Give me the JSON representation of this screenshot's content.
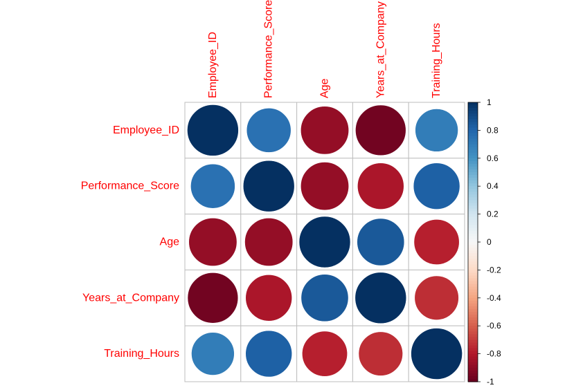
{
  "chart_data": {
    "type": "heatmap",
    "method": "circle",
    "variables": [
      "Employee_ID",
      "Performance_Score",
      "Age",
      "Years_at_Company",
      "Training_Hours"
    ],
    "matrix": [
      [
        1.0,
        0.75,
        -0.88,
        -0.97,
        0.7
      ],
      [
        0.75,
        1.0,
        -0.88,
        -0.82,
        0.82
      ],
      [
        -0.88,
        -0.88,
        1.0,
        0.85,
        -0.78
      ],
      [
        -0.97,
        -0.82,
        0.85,
        1.0,
        -0.74
      ],
      [
        0.7,
        0.82,
        -0.78,
        -0.74,
        1.0
      ]
    ],
    "colorbar": {
      "range": [
        -1,
        1
      ],
      "tick_labels": [
        "1",
        "0.8",
        "0.6",
        "0.4",
        "0.2",
        "0",
        "-0.2",
        "-0.4",
        "-0.6",
        "-0.8",
        "-1"
      ]
    },
    "colors": {
      "negative_end": "#67001F",
      "positive_end": "#053061",
      "label": "#FF0000",
      "grid": "#BEBEBE"
    }
  }
}
